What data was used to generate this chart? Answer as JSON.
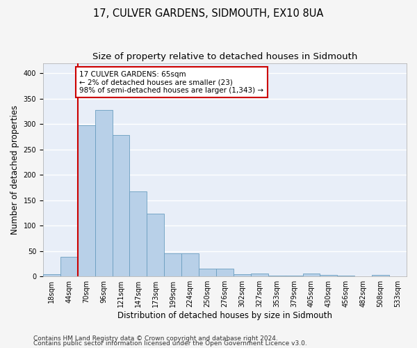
{
  "title": "17, CULVER GARDENS, SIDMOUTH, EX10 8UA",
  "subtitle": "Size of property relative to detached houses in Sidmouth",
  "xlabel": "Distribution of detached houses by size in Sidmouth",
  "ylabel": "Number of detached properties",
  "bar_labels": [
    "18sqm",
    "44sqm",
    "70sqm",
    "96sqm",
    "121sqm",
    "147sqm",
    "173sqm",
    "199sqm",
    "224sqm",
    "250sqm",
    "276sqm",
    "302sqm",
    "327sqm",
    "353sqm",
    "379sqm",
    "405sqm",
    "430sqm",
    "456sqm",
    "482sqm",
    "508sqm",
    "533sqm"
  ],
  "bar_values": [
    5,
    39,
    297,
    328,
    278,
    168,
    123,
    45,
    46,
    15,
    15,
    5,
    6,
    2,
    2,
    6,
    3,
    1,
    0,
    3,
    0
  ],
  "bar_color": "#b8d0e8",
  "bar_edge_color": "#6a9ec0",
  "annotation_text": "17 CULVER GARDENS: 65sqm\n← 2% of detached houses are smaller (23)\n98% of semi-detached houses are larger (1,343) →",
  "annotation_box_color": "#ffffff",
  "annotation_box_edge_color": "#cc0000",
  "vline_color": "#cc0000",
  "footer_line1": "Contains HM Land Registry data © Crown copyright and database right 2024.",
  "footer_line2": "Contains public sector information licensed under the Open Government Licence v3.0.",
  "ylim": [
    0,
    420
  ],
  "background_color": "#e8eef8",
  "grid_color": "#ffffff",
  "fig_bg_color": "#f5f5f5",
  "title_fontsize": 10.5,
  "subtitle_fontsize": 9.5,
  "axis_label_fontsize": 8.5,
  "tick_fontsize": 7,
  "annotation_fontsize": 7.5,
  "footer_fontsize": 6.5,
  "vline_x_index": 1.5
}
